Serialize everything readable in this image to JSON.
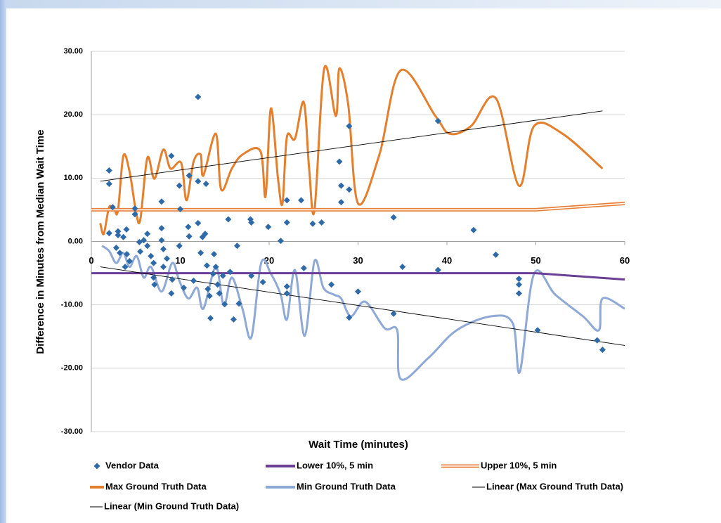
{
  "chart_data": {
    "type": "scatter",
    "x_label": "Wait Time (minutes)",
    "y_label": "Difference in Minutes from Median Wait Time",
    "xlim": [
      0,
      60
    ],
    "xticks": [
      0,
      10,
      20,
      30,
      40,
      50,
      60
    ],
    "ylim": [
      -30,
      30
    ],
    "yticks": [
      {
        "value": -30,
        "label": "-30.00"
      },
      {
        "value": -20,
        "label": "-20.00"
      },
      {
        "value": -10,
        "label": "-10.00"
      },
      {
        "value": 0,
        "label": "0.00"
      },
      {
        "value": 10,
        "label": "10.00"
      },
      {
        "value": 20,
        "label": "20.00"
      },
      {
        "value": 30,
        "label": "30.00"
      }
    ],
    "grid": true,
    "series": [
      {
        "name": "Vendor Data",
        "type": "scatter",
        "color": "#2f6aa8",
        "x": [
          2,
          2,
          2.4,
          2,
          3,
          3,
          3.95,
          3.6,
          2.8,
          3.2,
          4,
          4.3,
          3.8,
          4.9,
          4.9,
          5.4,
          5.5,
          5.9,
          6.3,
          6.3,
          6.7,
          7,
          7,
          7.1,
          7.9,
          7.9,
          7.9,
          8.1,
          8.1,
          8.5,
          9,
          9,
          9.1,
          9.9,
          10,
          9.9,
          10.4,
          10.9,
          11,
          11,
          11.5,
          12,
          12,
          12,
          12.3,
          12.5,
          12.8,
          12.9,
          13,
          13.1,
          13.3,
          13.4,
          13.7,
          13.8,
          14,
          14.2,
          14.4,
          14.8,
          15,
          15.4,
          15.6,
          16,
          16.4,
          16.6,
          17.9,
          18,
          18,
          19.3,
          19.9,
          21.3,
          22,
          22,
          22,
          22,
          23.6,
          23.9,
          24.9,
          25.9,
          27,
          27.9,
          28.1,
          28.1,
          29,
          29,
          29,
          30,
          34,
          34,
          35,
          39,
          39,
          43,
          45.5,
          48.1,
          48.1,
          48.1,
          50.2,
          56.9,
          57.5
        ],
        "values": [
          11.2,
          9.1,
          5.4,
          1.3,
          1.6,
          1,
          1.9,
          0.7,
          -1,
          -1.8,
          -2,
          -3.1,
          -4,
          4.3,
          5.2,
          -0.1,
          -1.6,
          0.2,
          1.2,
          -0.7,
          -2.3,
          -3.4,
          -5.7,
          -6.8,
          2.1,
          0.2,
          6.3,
          -1.2,
          -4,
          -2.7,
          13.5,
          -8.2,
          -6,
          8.8,
          5.1,
          -0.7,
          -7.3,
          2.3,
          0.8,
          10.4,
          -6.2,
          22.8,
          9.5,
          2.9,
          -1.8,
          0.7,
          1.2,
          9.1,
          -3.8,
          -7.5,
          -8.6,
          -12.1,
          -5.1,
          -2,
          -4,
          -6.8,
          -8.2,
          -5.4,
          -9.9,
          3.5,
          -4.8,
          -12.3,
          -0.7,
          -9.8,
          3.5,
          3,
          -5.4,
          -6.4,
          2.3,
          0.1,
          6.5,
          3,
          -7.1,
          -8.2,
          6.5,
          -4.2,
          2.8,
          3,
          -6.8,
          12.6,
          8.8,
          6.2,
          18.2,
          8.2,
          -12,
          -7.9,
          3.8,
          -11.4,
          -4,
          19,
          -4.5,
          1.8,
          -2.1,
          -5.9,
          -6.8,
          -8.2,
          -14,
          -15.6,
          -17.1
        ]
      },
      {
        "name": "Lower 10%, 5 min",
        "type": "line",
        "color": "#6b3f96",
        "x": [
          0,
          50,
          60
        ],
        "values": [
          -5,
          -5,
          -6
        ]
      },
      {
        "name": "Upper 10%, 5 min",
        "type": "double-line",
        "color": "#e8803a",
        "x": [
          0,
          50,
          60
        ],
        "values": [
          5,
          5,
          6
        ]
      },
      {
        "name": "Max Ground Truth Data",
        "type": "smooth-line",
        "color": "#e37f2d",
        "x": [
          1,
          1.4,
          2,
          2.6,
          3,
          3.6,
          4.3,
          5,
          5.5,
          6.3,
          7.1,
          8.1,
          8.9,
          10.1,
          10.7,
          11.5,
          12.3,
          12.6,
          14,
          14.6,
          15.8,
          17,
          19,
          19.6,
          20.2,
          21,
          21.5,
          22,
          22.9,
          23.9,
          24.5,
          25.1,
          26.2,
          27.5,
          27.9,
          28.9,
          30,
          32.4,
          34.8,
          38.7,
          40.3,
          42.7,
          45.5,
          48.1,
          49.8,
          53,
          57.5
        ],
        "values": [
          2.9,
          1.2,
          5.4,
          4.9,
          4.9,
          13.5,
          11,
          4.9,
          3.4,
          13.2,
          9.9,
          14.5,
          11.5,
          12.4,
          6.5,
          12.6,
          13.7,
          10.4,
          17,
          8.2,
          11.5,
          13.7,
          14.3,
          7.1,
          21,
          9.9,
          6,
          16.5,
          16.2,
          22,
          11.5,
          4.9,
          27.3,
          19.8,
          27.3,
          21.5,
          6,
          13.7,
          27,
          19.8,
          17,
          18.2,
          22.6,
          8.8,
          18.2,
          17,
          11.5
        ]
      },
      {
        "name": "Min Ground Truth Data",
        "type": "smooth-line",
        "color": "#8ea9d6",
        "x": [
          1.2,
          2,
          2.8,
          3.6,
          4.3,
          5.1,
          5.9,
          6.7,
          7.9,
          9.1,
          9.9,
          10.9,
          11.9,
          12.6,
          14,
          14.9,
          15.8,
          17,
          18,
          19.1,
          20.2,
          21.3,
          22,
          22.9,
          24,
          25.1,
          26.1,
          27.3,
          28.1,
          29.2,
          30.8,
          33,
          34.4,
          34.8,
          37.9,
          41.1,
          45,
          47.4,
          48.2,
          49.8,
          52.2,
          55.3,
          57.1,
          57.5,
          60
        ],
        "values": [
          -0.7,
          -1.5,
          -3.4,
          -1.8,
          -4,
          -2.3,
          -5.7,
          -4,
          -7.9,
          -3.4,
          -6.2,
          -9,
          -7.3,
          -10.6,
          -4,
          -10.1,
          -5.7,
          -10.6,
          -15.1,
          -3.4,
          -5.1,
          -8.4,
          -12.3,
          -4.5,
          -14.9,
          -3.1,
          -7.3,
          -8.4,
          -9,
          -11.8,
          -9.5,
          -13.7,
          -14,
          -21.7,
          -18.4,
          -14,
          -11.8,
          -12.9,
          -20.6,
          -5.1,
          -8.4,
          -11.8,
          -14,
          -9,
          -10.6
        ]
      },
      {
        "name": "Linear (Max Ground Truth Data)",
        "type": "line",
        "color": "#000000",
        "x": [
          1,
          57.5
        ],
        "values": [
          9.5,
          20.6
        ]
      },
      {
        "name": "Linear (Min Ground Truth Data)",
        "type": "line",
        "color": "#000000",
        "x": [
          1,
          60
        ],
        "values": [
          -4,
          -16.4
        ]
      }
    ]
  }
}
